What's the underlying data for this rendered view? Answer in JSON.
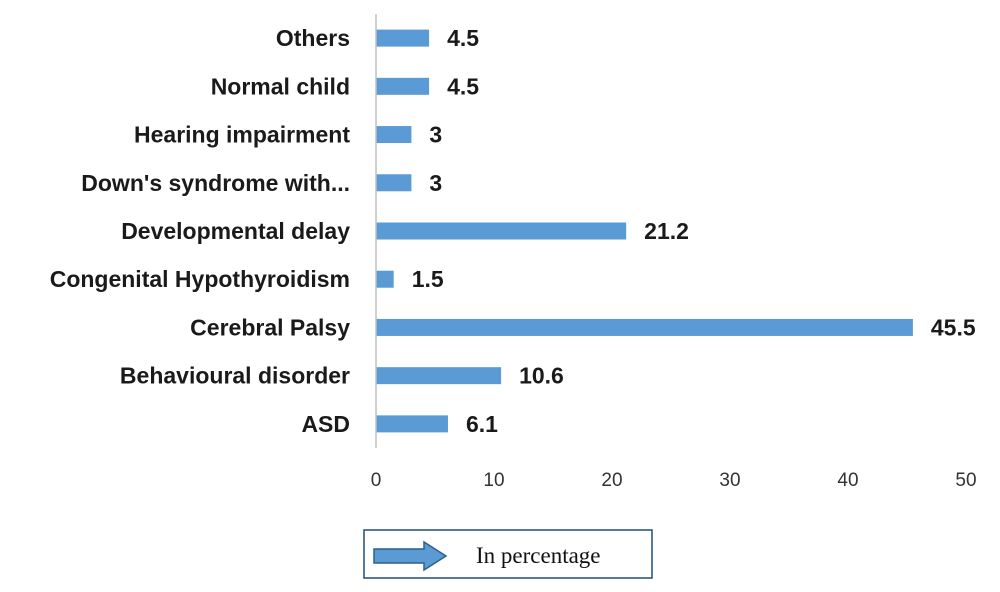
{
  "chart_data": {
    "type": "bar",
    "orientation": "horizontal",
    "categories": [
      "ASD",
      "Behavioural disorder",
      "Cerebral Palsy",
      "Congenital Hypothyroidism",
      "Developmental delay",
      "Down's syndrome with...",
      "Hearing impairment",
      "Normal child",
      "Others"
    ],
    "series": [
      {
        "name": "In percentage",
        "values": [
          6.1,
          10.6,
          45.5,
          1.5,
          21.2,
          3,
          3,
          4.5,
          4.5
        ]
      }
    ],
    "value_labels": [
      "6.1",
      "10.6",
      "45.5",
      "1.5",
      "21.2",
      "3",
      "3",
      "4.5",
      "4.5"
    ],
    "xlim": [
      0,
      50
    ],
    "x_ticks": [
      0,
      10,
      20,
      30,
      40,
      50
    ],
    "x_tick_labels": [
      "0",
      "10",
      "20",
      "30",
      "40",
      "50"
    ],
    "title": "",
    "xlabel": "",
    "ylabel": "",
    "grid": false,
    "legend_position": "bottom",
    "colors": {
      "bar": "#5b9bd5",
      "legend_arrow_fill": "#5b9bd5",
      "legend_arrow_stroke": "#2e5f8a",
      "legend_border": "#1f4e79",
      "axis": "#bfbfbf"
    }
  }
}
